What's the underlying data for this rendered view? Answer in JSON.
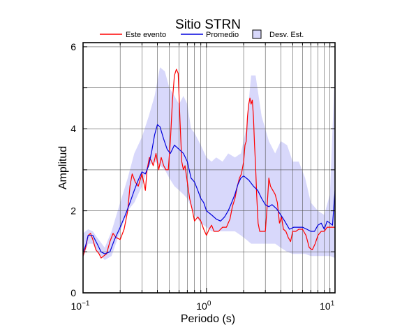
{
  "chart_data": {
    "type": "line",
    "title": "Sitio STRN",
    "xlabel": "Periodo (s)",
    "ylabel": "Amplitud",
    "x_scale": "log",
    "xlim": [
      0.1,
      11
    ],
    "ylim": [
      0,
      6.1
    ],
    "grid": true,
    "legend_position": "top",
    "x_ticks": [
      {
        "value": 0.1,
        "base": "10",
        "exp": "−1"
      },
      {
        "value": 1,
        "base": "10",
        "exp": "0"
      },
      {
        "value": 10,
        "base": "10",
        "exp": "1"
      }
    ],
    "y_ticks": [
      {
        "value": 0,
        "label": "0"
      },
      {
        "value": 2,
        "label": "2"
      },
      {
        "value": 4,
        "label": "4"
      },
      {
        "value": 6,
        "label": "6"
      }
    ],
    "legend": [
      {
        "label": "Este evento",
        "kind": "line",
        "color": "#ff0000"
      },
      {
        "label": "Promedio",
        "kind": "line",
        "color": "#0000dd"
      },
      {
        "label": "Desv. Est.",
        "kind": "patch",
        "color": "#d8d8fb"
      }
    ],
    "band": {
      "name": "Desv. Est.",
      "color": "#d8d8fb",
      "x": [
        0.1,
        0.11,
        0.12,
        0.13,
        0.15,
        0.17,
        0.2,
        0.23,
        0.26,
        0.3,
        0.34,
        0.38,
        0.42,
        0.46,
        0.5,
        0.55,
        0.6,
        0.65,
        0.7,
        0.75,
        0.8,
        0.9,
        1.0,
        1.1,
        1.2,
        1.35,
        1.5,
        1.7,
        1.9,
        2.1,
        2.3,
        2.5,
        2.8,
        3.2,
        3.6,
        4.0,
        4.5,
        5.0,
        5.6,
        6.3,
        7.0,
        8.0,
        9.0,
        10.0,
        11.0
      ],
      "upper": [
        1.45,
        1.55,
        1.5,
        1.35,
        1.1,
        1.5,
        2.2,
        2.8,
        3.4,
        3.8,
        4.3,
        4.8,
        5.5,
        5.4,
        5.0,
        4.8,
        4.6,
        4.8,
        4.6,
        4.0,
        3.9,
        3.6,
        3.3,
        3.2,
        3.3,
        3.2,
        3.4,
        3.3,
        3.4,
        4.0,
        5.3,
        5.3,
        4.3,
        3.7,
        3.4,
        3.7,
        3.6,
        3.2,
        3.2,
        2.8,
        2.2,
        2.0,
        1.9,
        2.4,
        5.5
      ],
      "lower": [
        0.85,
        1.2,
        1.2,
        1.0,
        0.8,
        0.9,
        1.5,
        2.0,
        2.2,
        2.6,
        3.1,
        3.2,
        3.1,
        3.0,
        2.8,
        2.6,
        2.5,
        2.4,
        2.3,
        2.1,
        1.9,
        1.7,
        1.6,
        1.5,
        1.5,
        1.5,
        1.5,
        1.5,
        1.4,
        1.3,
        1.2,
        1.2,
        1.2,
        1.2,
        1.2,
        1.1,
        1.0,
        0.95,
        0.95,
        0.95,
        0.9,
        0.9,
        0.9,
        0.9,
        0.85
      ]
    },
    "series": [
      {
        "name": "Este evento",
        "color": "#ff0000",
        "x": [
          0.1,
          0.105,
          0.11,
          0.115,
          0.12,
          0.127,
          0.135,
          0.14,
          0.147,
          0.155,
          0.165,
          0.175,
          0.185,
          0.2,
          0.215,
          0.23,
          0.24,
          0.25,
          0.265,
          0.28,
          0.3,
          0.32,
          0.33,
          0.345,
          0.36,
          0.37,
          0.39,
          0.41,
          0.43,
          0.45,
          0.47,
          0.49,
          0.51,
          0.53,
          0.55,
          0.57,
          0.59,
          0.61,
          0.63,
          0.65,
          0.67,
          0.7,
          0.73,
          0.77,
          0.8,
          0.85,
          0.9,
          0.95,
          1.0,
          1.05,
          1.1,
          1.15,
          1.25,
          1.35,
          1.45,
          1.55,
          1.62,
          1.7,
          1.78,
          1.85,
          1.92,
          2.0,
          2.05,
          2.1,
          2.15,
          2.2,
          2.25,
          2.3,
          2.35,
          2.4,
          2.45,
          2.5,
          2.55,
          2.62,
          2.7,
          2.8,
          2.9,
          3.0,
          3.1,
          3.2,
          3.3,
          3.45,
          3.6,
          3.75,
          3.9,
          4.05,
          4.2,
          4.4,
          4.6,
          4.8,
          5.0,
          5.3,
          5.6,
          6.0,
          6.4,
          6.8,
          7.2,
          7.6,
          8.0,
          8.5,
          9.0,
          9.5,
          10.0,
          10.5,
          11.0
        ],
        "y": [
          0.9,
          1.1,
          1.4,
          1.45,
          1.3,
          1.05,
          0.95,
          0.85,
          0.9,
          0.95,
          1.25,
          1.45,
          1.35,
          1.3,
          1.55,
          2.0,
          2.6,
          2.9,
          2.7,
          2.6,
          2.9,
          2.5,
          3.0,
          3.3,
          3.2,
          3.1,
          3.4,
          3.0,
          3.3,
          3.1,
          3.0,
          3.0,
          3.7,
          4.7,
          5.3,
          5.45,
          5.35,
          4.2,
          3.2,
          3.0,
          3.1,
          2.7,
          2.3,
          2.0,
          1.75,
          1.85,
          1.75,
          1.55,
          1.4,
          1.55,
          1.65,
          1.5,
          1.5,
          1.6,
          1.6,
          1.8,
          2.1,
          2.3,
          2.6,
          2.8,
          2.9,
          3.2,
          3.6,
          3.7,
          4.3,
          4.6,
          4.75,
          4.6,
          4.7,
          4.3,
          3.6,
          3.1,
          2.4,
          1.7,
          1.5,
          1.5,
          1.5,
          1.5,
          2.1,
          2.8,
          2.6,
          2.5,
          2.4,
          2.2,
          1.7,
          1.85,
          1.55,
          1.5,
          1.35,
          1.25,
          1.5,
          1.5,
          1.55,
          1.55,
          1.4,
          1.1,
          1.05,
          1.2,
          1.4,
          1.5,
          1.5,
          1.6,
          1.6,
          1.6,
          1.6
        ]
      },
      {
        "name": "Promedio",
        "color": "#0000dd",
        "x": [
          0.1,
          0.105,
          0.11,
          0.12,
          0.13,
          0.14,
          0.15,
          0.165,
          0.18,
          0.2,
          0.22,
          0.24,
          0.26,
          0.28,
          0.3,
          0.32,
          0.34,
          0.36,
          0.38,
          0.4,
          0.42,
          0.45,
          0.48,
          0.51,
          0.55,
          0.6,
          0.65,
          0.7,
          0.75,
          0.8,
          0.85,
          0.9,
          0.95,
          1.0,
          1.05,
          1.1,
          1.2,
          1.3,
          1.4,
          1.5,
          1.6,
          1.7,
          1.8,
          1.9,
          2.0,
          2.2,
          2.4,
          2.6,
          2.8,
          3.0,
          3.2,
          3.4,
          3.7,
          4.0,
          4.3,
          4.7,
          5.1,
          5.5,
          6.0,
          6.5,
          7.0,
          7.5,
          8.0,
          8.5,
          9.0,
          9.5,
          10.0,
          10.5,
          11.0
        ],
        "y": [
          1.0,
          1.15,
          1.4,
          1.4,
          1.2,
          1.0,
          0.95,
          1.0,
          1.3,
          1.6,
          1.9,
          2.2,
          2.5,
          2.75,
          2.95,
          2.9,
          3.1,
          3.45,
          3.85,
          4.1,
          4.05,
          3.75,
          3.5,
          3.4,
          3.6,
          3.5,
          3.4,
          3.2,
          2.8,
          2.7,
          2.5,
          2.3,
          2.2,
          2.0,
          1.95,
          1.9,
          1.8,
          1.75,
          1.85,
          2.0,
          2.2,
          2.4,
          2.65,
          2.8,
          2.85,
          2.75,
          2.6,
          2.5,
          2.3,
          2.15,
          2.1,
          2.15,
          2.05,
          1.9,
          1.75,
          1.55,
          1.6,
          1.6,
          1.6,
          1.55,
          1.5,
          1.5,
          1.65,
          1.7,
          1.55,
          1.75,
          1.7,
          1.65,
          2.5
        ]
      }
    ]
  }
}
